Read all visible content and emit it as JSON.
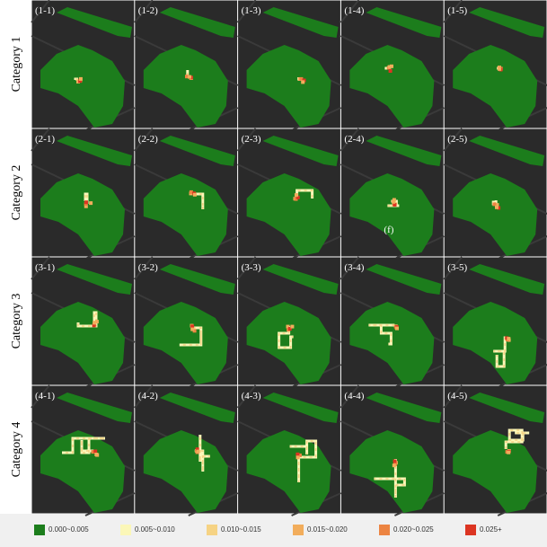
{
  "rows": [
    {
      "label": "Category 1",
      "panels": [
        "(1-1)",
        "(1-2)",
        "(1-3)",
        "(1-4)",
        "(1-5)"
      ]
    },
    {
      "label": "Category 2",
      "panels": [
        "(2-1)",
        "(2-2)",
        "(2-3)",
        "(2-4)",
        "(2-5)"
      ]
    },
    {
      "label": "Category 3",
      "panels": [
        "(3-1)",
        "(3-2)",
        "(3-3)",
        "(3-4)",
        "(3-5)"
      ]
    },
    {
      "label": "Category 4",
      "panels": [
        "(4-1)",
        "(4-2)",
        "(4-3)",
        "(4-4)",
        "(4-5)"
      ]
    }
  ],
  "annotation": "(f)",
  "legend": [
    {
      "label": "0.000~0.005",
      "color": "#1c7d1c"
    },
    {
      "label": "0.005~0.010",
      "color": "#fbf7b8"
    },
    {
      "label": "0.010~0.015",
      "color": "#f6d384"
    },
    {
      "label": "0.015~0.020",
      "color": "#f2ad5c"
    },
    {
      "label": "0.020~0.025",
      "color": "#ec8442"
    },
    {
      "label": "0.025+",
      "color": "#dc3522"
    }
  ]
}
